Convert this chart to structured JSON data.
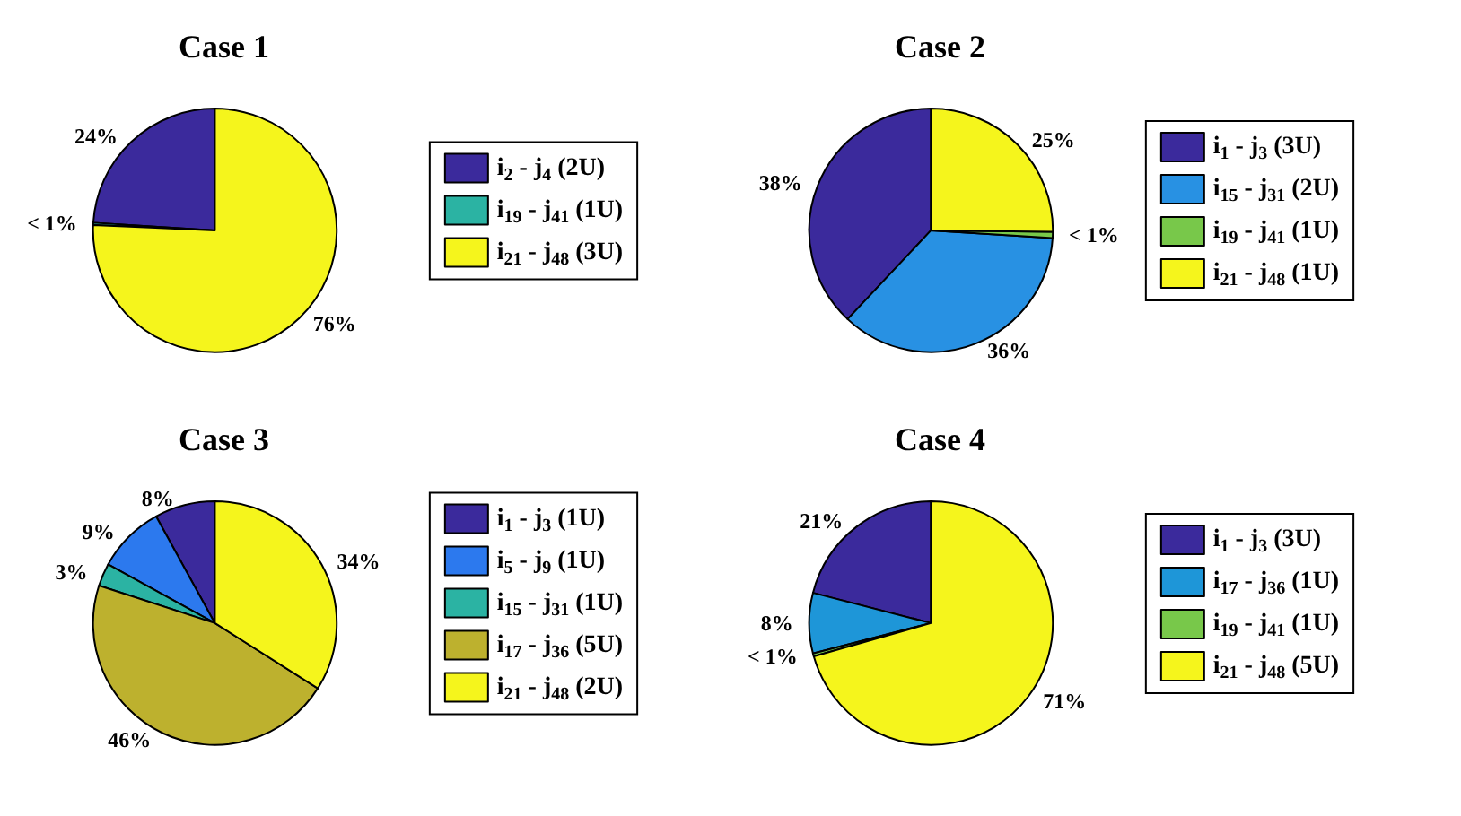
{
  "chart_data": [
    {
      "type": "pie",
      "title": "Case 1",
      "legend": "right",
      "categories": [
        "i$_{2}$ - j$_{4}$ (2U)",
        "i$_{19}$ - j$_{41}$ (1U)",
        "i$_{21}$ - j$_{48}$ (3U)"
      ],
      "values": [
        24,
        0.3,
        75.7
      ],
      "colors": [
        "#3b2a9c",
        "#2bb3a3",
        "#f5f51c"
      ],
      "value_labels": [
        "24%",
        "< 1%",
        "76%"
      ]
    },
    {
      "type": "pie",
      "title": "Case 2",
      "legend": "right",
      "categories": [
        "i$_{1}$ - j$_{3}$ (3U)",
        "i$_{15}$ - j$_{31}$ (2U)",
        "i$_{19}$ - j$_{41}$ (1U)",
        "i$_{21}$ - j$_{48}$ (1U)"
      ],
      "values": [
        38,
        36,
        0.8,
        25.2
      ],
      "colors": [
        "#3b2a9c",
        "#2891e3",
        "#78c84a",
        "#f5f51c"
      ],
      "value_labels": [
        "38%",
        "36%",
        "< 1%",
        "25%"
      ]
    },
    {
      "type": "pie",
      "title": "Case 3",
      "legend": "right",
      "categories": [
        "i$_{1}$ - j$_{3}$ (1U)",
        "i$_{5}$ - j$_{9}$ (1U)",
        "i$_{15}$ - j$_{31}$ (1U)",
        "i$_{17}$ - j$_{36}$ (5U)",
        "i$_{21}$ - j$_{48}$ (2U)"
      ],
      "values": [
        8,
        9,
        3,
        46,
        34
      ],
      "colors": [
        "#3b2a9c",
        "#2c79ee",
        "#2bb3a3",
        "#bdb12e",
        "#f5f51c"
      ],
      "value_labels": [
        "8%",
        "9%",
        "3%",
        "46%",
        "34%"
      ]
    },
    {
      "type": "pie",
      "title": "Case 4",
      "legend": "right",
      "categories": [
        "i$_{1}$ - j$_{3}$ (3U)",
        "i$_{17}$ - j$_{36}$ (1U)",
        "i$_{19}$ - j$_{41}$ (1U)",
        "i$_{21}$ - j$_{48}$ (5U)"
      ],
      "values": [
        21,
        8,
        0.4,
        70.6
      ],
      "colors": [
        "#3b2a9c",
        "#1e96d8",
        "#78c84a",
        "#f5f51c"
      ],
      "value_labels": [
        "21%",
        "8%",
        "< 1%",
        "71%"
      ]
    }
  ]
}
